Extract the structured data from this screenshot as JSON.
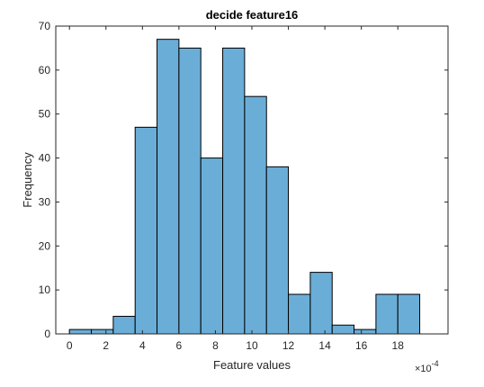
{
  "chart_data": {
    "type": "bar",
    "title": "decide feature16",
    "xlabel": "Feature values",
    "ylabel": "Frequency",
    "x_multiplier_label": "×10",
    "x_multiplier_exponent": "-4",
    "x_ticks": [
      0,
      2,
      4,
      6,
      8,
      10,
      12,
      14,
      16,
      18
    ],
    "y_ticks": [
      0,
      10,
      20,
      30,
      40,
      50,
      60,
      70
    ],
    "xlim": [
      -0.75,
      20.75
    ],
    "ylim": [
      0,
      70
    ],
    "bin_edges": [
      0,
      1.2,
      2.4,
      3.6,
      4.8,
      6.0,
      7.2,
      8.4,
      9.6,
      10.8,
      12.0,
      13.2,
      14.4,
      15.6,
      16.8,
      18.0,
      19.2
    ],
    "counts": [
      1,
      1,
      4,
      47,
      67,
      65,
      40,
      65,
      54,
      38,
      9,
      14,
      2,
      1,
      9,
      9
    ],
    "bar_color": "#6aaed8",
    "edge_color": "#000000",
    "grid": false
  }
}
